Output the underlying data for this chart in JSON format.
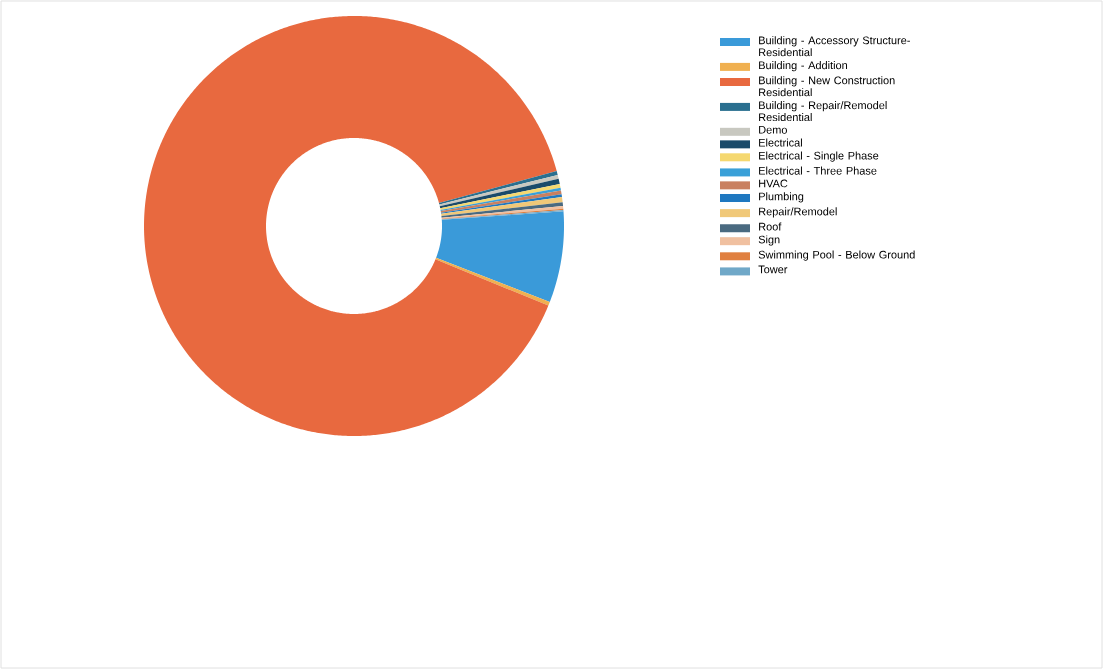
{
  "chart_data": {
    "type": "donut",
    "categories": [
      "Building - Accessory Structure- Residential",
      "Building - Addition",
      "Building - New Construction Residential",
      "Building - Repair/Remodel Residential",
      "Demo",
      "Electrical",
      "Electrical - Single Phase",
      "Electrical - Three Phase",
      "HVAC",
      "Plumbing",
      "Repair/Remodel",
      "Roof",
      "Sign",
      "Swimming Pool - Below Ground",
      "Tower"
    ],
    "values": [
      7.0,
      0.3,
      89.6,
      0.3,
      0.3,
      0.4,
      0.3,
      0.2,
      0.3,
      0.2,
      0.4,
      0.3,
      0.2,
      0.1,
      0.1
    ],
    "colors": [
      "#3a9ad9",
      "#f0b050",
      "#e8693f",
      "#2a6f8f",
      "#c8c8c0",
      "#1a4a6a",
      "#f5d870",
      "#3aa0d8",
      "#c98060",
      "#1f78c0",
      "#f0c878",
      "#4a6a80",
      "#f0c0a0",
      "#e08040",
      "#70a8c8"
    ],
    "legend": "right"
  }
}
